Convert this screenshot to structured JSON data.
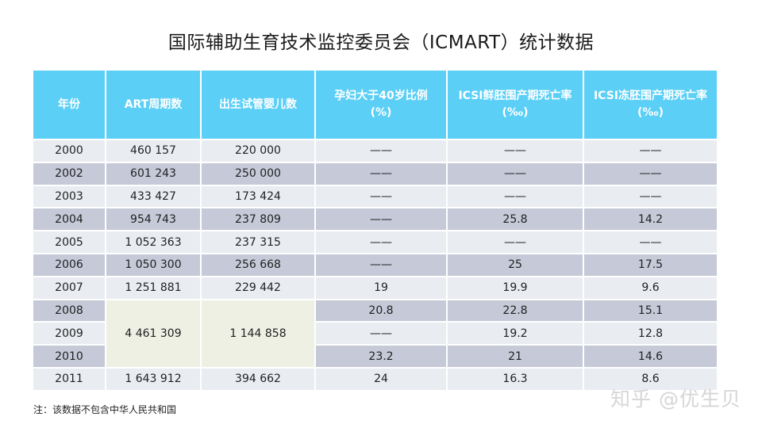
{
  "title": "国际辅助生育技术监控委员会（ICMART）统计数据",
  "headers": [
    "年份",
    "ART周期数",
    "出生试管婴儿数",
    "孕妇大于40岁比例\n(%)",
    "ICSI鲜胚围产期死亡率\n(‰)",
    "ICSI冻胚围产期死亡率\n(‰)"
  ],
  "rows": [
    [
      "2000",
      "460 157",
      "220 000",
      "——",
      "——",
      "——"
    ],
    [
      "2002",
      "601 243",
      "250 000",
      "——",
      "——",
      "——"
    ],
    [
      "2003",
      "433 427",
      "173 424",
      "——",
      "——",
      "——"
    ],
    [
      "2004",
      "954 743",
      "237 809",
      "——",
      "25.8",
      "14.2"
    ],
    [
      "2005",
      "1 052 363",
      "237 315",
      "——",
      "——",
      "——"
    ],
    [
      "2006",
      "1 050 300",
      "256 668",
      "——",
      "25",
      "17.5"
    ],
    [
      "2007",
      "1 251 881",
      "229 442",
      "19",
      "19.9",
      "9.6"
    ],
    [
      "2008",
      "",
      "",
      "20.8",
      "22.8",
      "15.1"
    ],
    [
      "2009",
      "",
      "",
      "——",
      "19.2",
      "12.8"
    ],
    [
      "2010",
      "",
      "",
      "23.2",
      "21",
      "14.6"
    ],
    [
      "2011",
      "1 643 912",
      "394 662",
      "24",
      "16.3",
      "8.6"
    ]
  ],
  "merged": {
    "art_cycles_2008_2010": "4 461 309",
    "ivf_births_2008_2010": "1 144 858"
  },
  "note": "注：该数据不包含中华人民共和国",
  "watermark": "知乎 @优生贝"
}
